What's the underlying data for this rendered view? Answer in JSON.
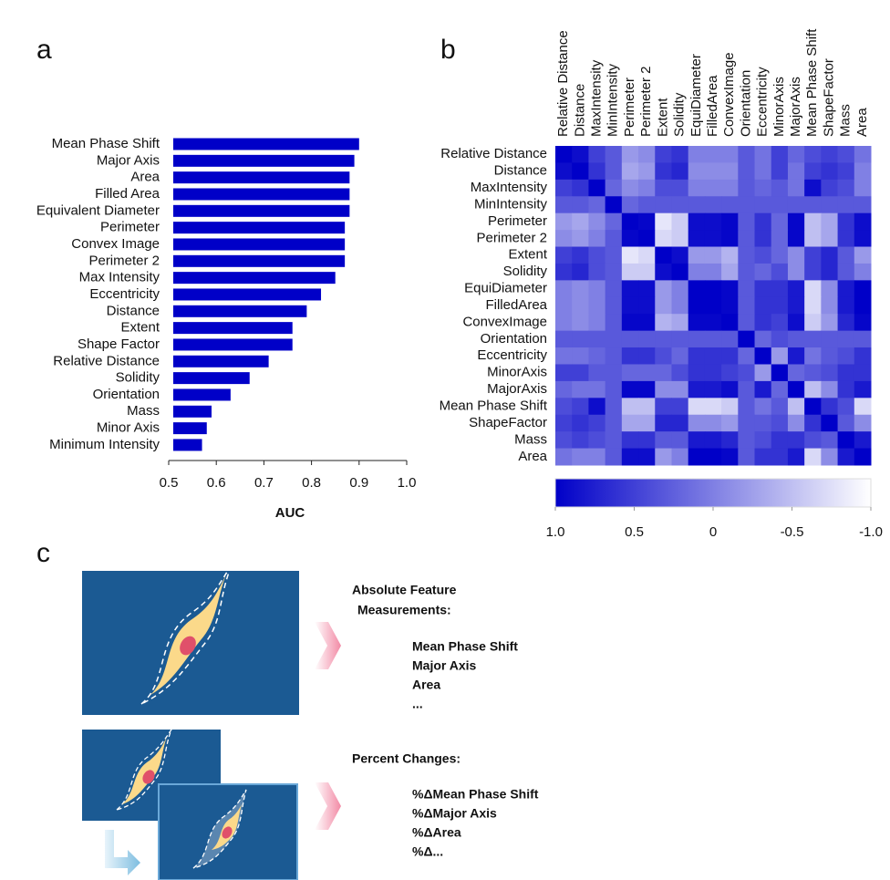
{
  "panel_labels": [
    "a",
    "b",
    "c"
  ],
  "chart_data": [
    {
      "type": "bar",
      "orientation": "horizontal",
      "color": "#0000c8",
      "categories": [
        "Mean Phase Shift",
        "Major Axis",
        "Area",
        "Filled Area",
        "Equivalent Diameter",
        "Perimeter",
        "Convex Image",
        "Perimeter 2",
        "Max Intensity",
        "Eccentricity",
        "Distance",
        "Extent",
        "Shape Factor",
        "Relative Distance",
        "Solidity",
        "Orientation",
        "Mass",
        "Minor Axis",
        "Minimum Intensity"
      ],
      "values": [
        0.9,
        0.89,
        0.88,
        0.88,
        0.88,
        0.87,
        0.87,
        0.87,
        0.85,
        0.82,
        0.79,
        0.76,
        0.76,
        0.71,
        0.67,
        0.63,
        0.59,
        0.58,
        0.57
      ],
      "xlim": [
        0.5,
        1
      ],
      "xticks": [
        0.5,
        0.6,
        0.7,
        0.8,
        0.9,
        {
          "value": 1,
          "label": "1.0"
        }
      ],
      "xlabel": "AUC"
    },
    {
      "type": "heatmap",
      "x": [
        "Relative Distance",
        "Distance",
        "MaxIntensity",
        "MinIntensity",
        "Perimeter",
        "Perimeter 2",
        "Extent",
        "Solidity",
        "EquiDiameter",
        "FilledArea",
        "ConvexImage",
        "Orientation",
        "Eccentricity",
        "MinorAxis",
        "MajorAxis",
        "Mean Phase Shift",
        "ShapeFactor",
        "Mass",
        "Area"
      ],
      "y": [
        "Relative Distance",
        "Distance",
        "MaxIntensity",
        "MinIntensity",
        "Perimeter",
        "Perimeter 2",
        "Extent",
        "Solidity",
        "EquiDiameter",
        "FilledArea",
        "ConvexImage",
        "Orientation",
        "Eccentricity",
        "MinorAxis",
        "MajorAxis",
        "Mean Phase Shift",
        "ShapeFactor",
        "Mass",
        "Area"
      ],
      "values": [
        [
          1,
          0.9,
          0.5,
          0.3,
          -0.2,
          -0.1,
          0.5,
          0.6,
          0,
          0,
          0,
          0.3,
          0.1,
          0.5,
          0.2,
          0.4,
          0.5,
          0.4,
          0.1
        ],
        [
          0.9,
          1,
          0.6,
          0.3,
          -0.3,
          -0.2,
          0.6,
          0.7,
          -0.1,
          -0.1,
          -0.1,
          0.3,
          0.1,
          0.5,
          0.1,
          0.5,
          0.6,
          0.5,
          0
        ],
        [
          0.5,
          0.6,
          1,
          0.2,
          -0.1,
          0,
          0.4,
          0.4,
          0,
          0,
          0,
          0.3,
          0.2,
          0.3,
          0.1,
          0.9,
          0.5,
          0.4,
          0
        ],
        [
          0.3,
          0.3,
          0.2,
          1,
          0.2,
          0.3,
          0.3,
          0.3,
          0.3,
          0.3,
          0.3,
          0.3,
          0.3,
          0.3,
          0.3,
          0.3,
          0.3,
          0.3,
          0.3
        ],
        [
          -0.2,
          -0.3,
          -0.1,
          0.2,
          1,
          0.95,
          -0.8,
          -0.6,
          0.9,
          0.9,
          0.95,
          0.3,
          0.6,
          0.2,
          0.95,
          -0.5,
          -0.3,
          0.6,
          0.9
        ],
        [
          -0.1,
          -0.2,
          0,
          0.3,
          0.95,
          1,
          -0.7,
          -0.6,
          0.9,
          0.9,
          0.95,
          0.3,
          0.6,
          0.2,
          0.95,
          -0.5,
          -0.3,
          0.6,
          0.9
        ],
        [
          0.5,
          0.6,
          0.4,
          0.3,
          -0.8,
          -0.7,
          1,
          0.9,
          -0.2,
          -0.2,
          -0.4,
          0.3,
          0.4,
          0.2,
          -0.1,
          0.5,
          0.7,
          0.3,
          -0.2
        ],
        [
          0.6,
          0.7,
          0.4,
          0.3,
          -0.6,
          -0.6,
          0.9,
          1,
          0,
          0,
          -0.3,
          0.3,
          0.2,
          0.4,
          -0.1,
          0.5,
          0.7,
          0.3,
          0
        ],
        [
          0,
          -0.1,
          0,
          0.3,
          0.9,
          0.9,
          -0.2,
          0,
          1,
          1,
          0.95,
          0.3,
          0.6,
          0.6,
          0.8,
          -0.7,
          -0.1,
          0.8,
          1
        ],
        [
          0,
          -0.1,
          0,
          0.3,
          0.9,
          0.9,
          -0.2,
          0,
          1,
          1,
          0.95,
          0.3,
          0.6,
          0.6,
          0.8,
          -0.7,
          -0.1,
          0.8,
          1
        ],
        [
          0,
          -0.1,
          0,
          0.3,
          0.95,
          0.95,
          -0.4,
          -0.3,
          0.95,
          0.95,
          1,
          0.3,
          0.6,
          0.5,
          0.9,
          -0.6,
          -0.2,
          0.7,
          0.95
        ],
        [
          0.3,
          0.3,
          0.3,
          0.3,
          0.3,
          0.3,
          0.3,
          0.3,
          0.3,
          0.3,
          0.3,
          1,
          0.2,
          0.4,
          0.3,
          0.3,
          0.3,
          0.3,
          0.3
        ],
        [
          0.1,
          0.1,
          0.2,
          0.3,
          0.6,
          0.6,
          0.4,
          0.2,
          0.6,
          0.6,
          0.6,
          0.2,
          1,
          -0.2,
          0.8,
          0.1,
          0.3,
          0.4,
          0.6
        ],
        [
          0.5,
          0.5,
          0.3,
          0.3,
          0.2,
          0.2,
          0.2,
          0.4,
          0.6,
          0.6,
          0.5,
          0.4,
          -0.2,
          1,
          0.2,
          0.3,
          0.4,
          0.6,
          0.6
        ],
        [
          0.2,
          0.1,
          0.1,
          0.3,
          0.95,
          0.95,
          -0.1,
          -0.1,
          0.8,
          0.8,
          0.9,
          0.3,
          0.8,
          0.2,
          1,
          -0.5,
          -0.1,
          0.6,
          0.8
        ],
        [
          0.4,
          0.5,
          0.9,
          0.3,
          -0.5,
          -0.5,
          0.5,
          0.5,
          -0.7,
          -0.7,
          -0.6,
          0.3,
          0.1,
          0.3,
          -0.5,
          1,
          0.6,
          0.4,
          -0.7
        ],
        [
          0.5,
          0.6,
          0.5,
          0.3,
          -0.3,
          -0.3,
          0.7,
          0.7,
          -0.1,
          -0.1,
          -0.2,
          0.3,
          0.3,
          0.4,
          -0.1,
          0.6,
          1,
          0.3,
          -0.1
        ],
        [
          0.4,
          0.5,
          0.4,
          0.3,
          0.6,
          0.6,
          0.3,
          0.3,
          0.8,
          0.8,
          0.7,
          0.3,
          0.4,
          0.6,
          0.6,
          0.4,
          0.3,
          1,
          0.8
        ],
        [
          0.1,
          0,
          0,
          0.3,
          0.9,
          0.9,
          -0.2,
          0,
          1,
          1,
          0.95,
          0.3,
          0.6,
          0.6,
          0.8,
          -0.7,
          -0.1,
          0.8,
          1
        ]
      ],
      "clim": [
        1,
        -1
      ],
      "colors": [
        "#0000c8",
        "#ffffff"
      ],
      "cticks": [
        {
          "value": 1,
          "label": "1.0"
        },
        0.5,
        0,
        -0.5,
        {
          "value": -1,
          "label": "-1.0"
        }
      ]
    }
  ],
  "diagram": {
    "absolute": {
      "title": [
        "Absolute Feature",
        "Measurements:"
      ],
      "items": [
        "Mean Phase Shift",
        "Major Axis",
        "Area",
        "..."
      ]
    },
    "percent": {
      "title": "Percent Changes:",
      "items": [
        "%ΔMean Phase Shift",
        "%ΔMajor Axis",
        "%ΔArea",
        "%Δ..."
      ]
    }
  }
}
